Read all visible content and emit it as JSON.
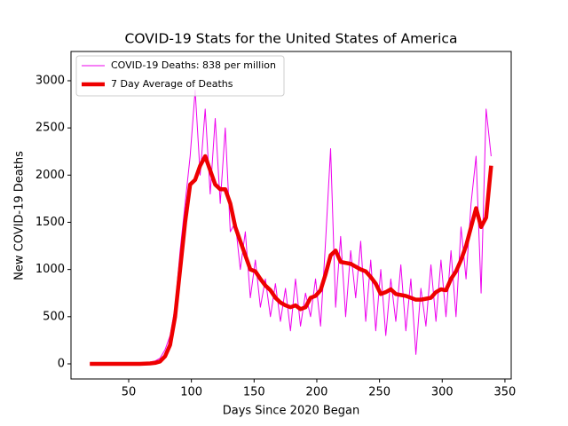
{
  "chart_data": {
    "type": "line",
    "title": "COVID-19 Stats for the United States of America",
    "xlabel": "Days Since 2020 Began",
    "ylabel": "New COVID-19 Deaths",
    "x": [
      19,
      23,
      27,
      31,
      35,
      39,
      43,
      47,
      51,
      55,
      59,
      63,
      67,
      71,
      75,
      79,
      83,
      87,
      91,
      95,
      99,
      103,
      107,
      111,
      115,
      119,
      123,
      127,
      131,
      135,
      139,
      143,
      147,
      151,
      155,
      159,
      163,
      167,
      171,
      175,
      179,
      183,
      187,
      191,
      195,
      199,
      203,
      207,
      211,
      215,
      219,
      223,
      227,
      231,
      235,
      239,
      243,
      247,
      251,
      255,
      259,
      263,
      267,
      271,
      275,
      279,
      283,
      287,
      291,
      295,
      299,
      303,
      307,
      311,
      315,
      319,
      323,
      327,
      331,
      335,
      339
    ],
    "series": [
      {
        "name": "COVID-19 Deaths: 838 per million",
        "color": "#ee00ee",
        "width": 1,
        "values": [
          0,
          0,
          0,
          0,
          0,
          0,
          0,
          1,
          2,
          5,
          8,
          12,
          20,
          30,
          60,
          150,
          300,
          600,
          1200,
          1700,
          2200,
          2900,
          2000,
          2700,
          1800,
          2600,
          1700,
          2500,
          1400,
          1500,
          1000,
          1400,
          700,
          1100,
          600,
          900,
          500,
          850,
          450,
          800,
          350,
          900,
          400,
          750,
          500,
          900,
          400,
          1300,
          2280,
          600,
          1350,
          500,
          1200,
          700,
          1300,
          450,
          1100,
          350,
          1000,
          300,
          900,
          450,
          1050,
          350,
          900,
          100,
          800,
          400,
          1050,
          450,
          1100,
          500,
          1200,
          500,
          1450,
          900,
          1700,
          2200,
          750,
          2700,
          2200
        ]
      },
      {
        "name": "7 Day Average of Deaths",
        "color": "#ee0000",
        "width": 4.5,
        "values": [
          0,
          0,
          0,
          0,
          0,
          0,
          0,
          0,
          0,
          0,
          0,
          2,
          5,
          10,
          25,
          80,
          200,
          500,
          1000,
          1500,
          1900,
          1950,
          2100,
          2200,
          2050,
          1900,
          1850,
          1850,
          1700,
          1450,
          1300,
          1150,
          1000,
          980,
          900,
          830,
          780,
          700,
          650,
          620,
          600,
          620,
          580,
          600,
          700,
          720,
          780,
          950,
          1150,
          1200,
          1080,
          1070,
          1060,
          1030,
          1000,
          980,
          920,
          850,
          740,
          760,
          790,
          740,
          730,
          720,
          700,
          680,
          680,
          690,
          700,
          760,
          790,
          780,
          900,
          980,
          1100,
          1250,
          1450,
          1650,
          1450,
          1550,
          2100
        ]
      }
    ],
    "xlim": [
      4,
      355
    ],
    "xticks": [
      50,
      100,
      150,
      200,
      250,
      300,
      350
    ],
    "ylim": [
      -160,
      3310
    ],
    "yticks": [
      0,
      500,
      1000,
      1500,
      2000,
      2500,
      3000
    ],
    "legend": "upper left"
  }
}
